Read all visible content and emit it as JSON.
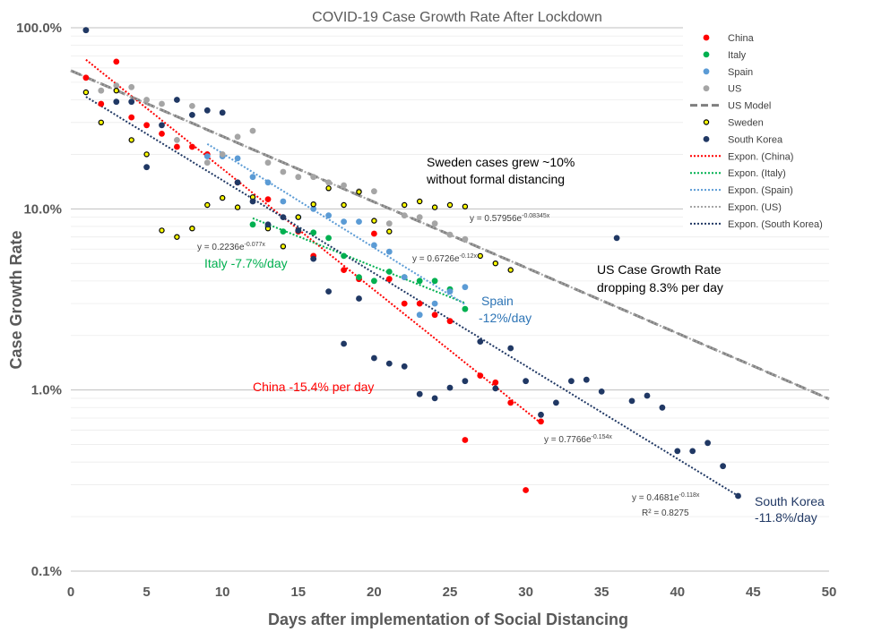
{
  "chart_data": {
    "type": "scatter",
    "title": "COVID-19 Case Growth Rate After Lockdown",
    "xlabel": "Days after implementation of Social Distancing",
    "ylabel": "Case Growth Rate",
    "x_range": [
      0,
      50
    ],
    "x_ticks": [
      0,
      5,
      10,
      15,
      20,
      25,
      30,
      35,
      40,
      45,
      50
    ],
    "y_scale": "log",
    "y_range": [
      0.1,
      100
    ],
    "y_ticks": [
      {
        "value": 100,
        "label": "100.0%"
      },
      {
        "value": 10,
        "label": "10.0%"
      },
      {
        "value": 1,
        "label": "1.0%"
      },
      {
        "value": 0.1,
        "label": "0.1%"
      }
    ],
    "grid": "horizontal major and minor",
    "legend_position": "right",
    "series": [
      {
        "name": "China",
        "color": "#ff0000",
        "marker": "circle",
        "points": [
          [
            1,
            53
          ],
          [
            2,
            38
          ],
          [
            3,
            65
          ],
          [
            4,
            32
          ],
          [
            5,
            29
          ],
          [
            6,
            26
          ],
          [
            7,
            22
          ],
          [
            8,
            22
          ],
          [
            9,
            20
          ],
          [
            11,
            14
          ],
          [
            13,
            11.3
          ],
          [
            15,
            7.5
          ],
          [
            16,
            5.5
          ],
          [
            18,
            4.6
          ],
          [
            19,
            4.1
          ],
          [
            20,
            7.3
          ],
          [
            21,
            4.1
          ],
          [
            22,
            3.0
          ],
          [
            23,
            3.0
          ],
          [
            24,
            2.6
          ],
          [
            25,
            2.4
          ],
          [
            26,
            0.53
          ],
          [
            27,
            1.2
          ],
          [
            28,
            1.1
          ],
          [
            29,
            0.85
          ],
          [
            30,
            0.28
          ],
          [
            31,
            0.67
          ]
        ]
      },
      {
        "name": "Italy",
        "color": "#00b050",
        "marker": "circle",
        "points": [
          [
            12,
            8.2
          ],
          [
            13,
            8.0
          ],
          [
            14,
            7.5
          ],
          [
            15,
            7.6
          ],
          [
            16,
            7.4
          ],
          [
            17,
            6.9
          ],
          [
            18,
            5.5
          ],
          [
            19,
            4.2
          ],
          [
            20,
            4.0
          ],
          [
            21,
            4.5
          ],
          [
            22,
            4.2
          ],
          [
            23,
            4.0
          ],
          [
            24,
            4.0
          ],
          [
            25,
            3.6
          ],
          [
            26,
            2.8
          ]
        ]
      },
      {
        "name": "Spain",
        "color": "#5b9bd5",
        "marker": "circle",
        "points": [
          [
            9,
            19.5
          ],
          [
            10,
            19.5
          ],
          [
            11,
            19.0
          ],
          [
            12,
            15.0
          ],
          [
            13,
            14.0
          ],
          [
            14,
            11.0
          ],
          [
            15,
            9.0
          ],
          [
            16,
            10.0
          ],
          [
            17,
            9.2
          ],
          [
            18,
            8.5
          ],
          [
            19,
            8.5
          ],
          [
            20,
            6.3
          ],
          [
            21,
            5.8
          ],
          [
            22,
            4.2
          ],
          [
            23,
            2.6
          ],
          [
            24,
            3.0
          ],
          [
            25,
            3.5
          ],
          [
            26,
            3.7
          ]
        ]
      },
      {
        "name": "US",
        "color": "#a5a5a5",
        "marker": "circle",
        "points": [
          [
            1,
            97
          ],
          [
            2,
            45
          ],
          [
            3,
            48
          ],
          [
            4,
            47
          ],
          [
            5,
            40
          ],
          [
            6,
            38
          ],
          [
            7,
            24
          ],
          [
            8,
            37
          ],
          [
            9,
            18
          ],
          [
            10,
            20
          ],
          [
            11,
            25
          ],
          [
            12,
            27
          ],
          [
            13,
            18
          ],
          [
            14,
            16
          ],
          [
            15,
            15
          ],
          [
            16,
            15
          ],
          [
            17,
            14
          ],
          [
            18,
            13.5
          ],
          [
            19,
            12.5
          ],
          [
            20,
            12.5
          ],
          [
            21,
            8.3
          ],
          [
            22,
            9.2
          ],
          [
            23,
            9.0
          ],
          [
            24,
            8.3
          ],
          [
            25,
            7.2
          ],
          [
            26,
            6.8
          ]
        ]
      },
      {
        "name": "US Model",
        "color": "#7f7f7f",
        "style": "dashed",
        "fit": {
          "a": 0.57956,
          "b": -0.08345
        },
        "x_range": [
          0,
          50
        ]
      },
      {
        "name": "Sweden",
        "color": "#000000",
        "fill": "#ffff00",
        "marker": "circle",
        "points": [
          [
            1,
            44
          ],
          [
            2,
            30
          ],
          [
            3,
            45
          ],
          [
            4,
            24
          ],
          [
            5,
            20
          ],
          [
            6,
            7.6
          ],
          [
            7,
            7.0
          ],
          [
            8,
            7.8
          ],
          [
            9,
            10.5
          ],
          [
            10,
            11.5
          ],
          [
            11,
            10.2
          ],
          [
            12,
            11.6
          ],
          [
            13,
            7.8
          ],
          [
            14,
            6.2
          ],
          [
            15,
            9.0
          ],
          [
            16,
            10.6
          ],
          [
            17,
            13.0
          ],
          [
            18,
            10.5
          ],
          [
            19,
            12.4
          ],
          [
            20,
            8.6
          ],
          [
            21,
            7.5
          ],
          [
            22,
            10.5
          ],
          [
            23,
            11.0
          ],
          [
            24,
            10.2
          ],
          [
            25,
            10.5
          ],
          [
            26,
            10.3
          ],
          [
            27,
            5.5
          ],
          [
            28,
            5.0
          ],
          [
            29,
            4.6
          ]
        ]
      },
      {
        "name": "South Korea",
        "color": "#203864",
        "marker": "circle",
        "points": [
          [
            1,
            97
          ],
          [
            3,
            39
          ],
          [
            4,
            39
          ],
          [
            5,
            17
          ],
          [
            6,
            29
          ],
          [
            7,
            40
          ],
          [
            8,
            33
          ],
          [
            9,
            35
          ],
          [
            10,
            34
          ],
          [
            11,
            14
          ],
          [
            12,
            11
          ],
          [
            13,
            8.2
          ],
          [
            14,
            9.0
          ],
          [
            15,
            7.6
          ],
          [
            16,
            5.3
          ],
          [
            17,
            3.5
          ],
          [
            18,
            1.8
          ],
          [
            19,
            3.2
          ],
          [
            20,
            1.5
          ],
          [
            21,
            1.4
          ],
          [
            22,
            1.35
          ],
          [
            23,
            0.95
          ],
          [
            24,
            0.9
          ],
          [
            25,
            1.03
          ],
          [
            26,
            1.12
          ],
          [
            27,
            1.85
          ],
          [
            28,
            1.02
          ],
          [
            29,
            1.7
          ],
          [
            30,
            1.12
          ],
          [
            31,
            0.73
          ],
          [
            32,
            0.85
          ],
          [
            33,
            1.12
          ],
          [
            34,
            1.14
          ],
          [
            35,
            0.98
          ],
          [
            36,
            6.9
          ],
          [
            37,
            0.87
          ],
          [
            38,
            0.93
          ],
          [
            39,
            0.8
          ],
          [
            40,
            0.46
          ],
          [
            41,
            0.46
          ],
          [
            42,
            0.51
          ],
          [
            43,
            0.38
          ],
          [
            44,
            0.26
          ]
        ]
      },
      {
        "name": "Expon. (China)",
        "color": "#ff0000",
        "style": "dotted",
        "fit": {
          "a": 0.7766,
          "b": -0.154
        },
        "x_range": [
          1,
          31
        ]
      },
      {
        "name": "Expon. (Italy)",
        "color": "#00b050",
        "style": "dotted",
        "fit": {
          "a": 0.2236,
          "b": -0.077
        },
        "x_range": [
          12,
          26
        ]
      },
      {
        "name": "Expon. (Spain)",
        "color": "#5b9bd5",
        "style": "dotted",
        "fit": {
          "a": 0.6726,
          "b": -0.12
        },
        "x_range": [
          9,
          26
        ]
      },
      {
        "name": "Expon. (US)",
        "color": "#a5a5a5",
        "style": "dotted",
        "fit": {
          "a": 0.57956,
          "b": -0.08345
        },
        "x_range": [
          0,
          50
        ]
      },
      {
        "name": "Expon. (South Korea)",
        "color": "#203864",
        "style": "dotted",
        "fit": {
          "a": 0.4681,
          "b": -0.118
        },
        "x_range": [
          1,
          44
        ]
      }
    ],
    "equations": [
      {
        "id": "us",
        "text": "y = 0.57956e",
        "exp": "-0.08345x"
      },
      {
        "id": "italy",
        "text": "y = 0.2236e",
        "exp": "-0.077x"
      },
      {
        "id": "spain",
        "text": "y = 0.6726e",
        "exp": "-0.12x"
      },
      {
        "id": "china",
        "text": "y = 0.7766e",
        "exp": "-0.154x"
      },
      {
        "id": "korea",
        "text": "y = 0.4681e",
        "exp": "-0.118x"
      },
      {
        "id": "korea_r2",
        "text": "R² = 0.8275"
      }
    ],
    "annotations": {
      "sweden_line1": "Sweden cases grew ~10%",
      "sweden_line2": "without formal distancing",
      "us_line1": "US Case Growth Rate",
      "us_line2": "dropping 8.3% per day",
      "italy": "Italy -7.7%/day",
      "spain_line1": "Spain",
      "spain_line2": "-12%/day",
      "china": "China -15.4% per day",
      "korea_line1": "South Korea",
      "korea_line2": "-11.8%/day"
    }
  }
}
